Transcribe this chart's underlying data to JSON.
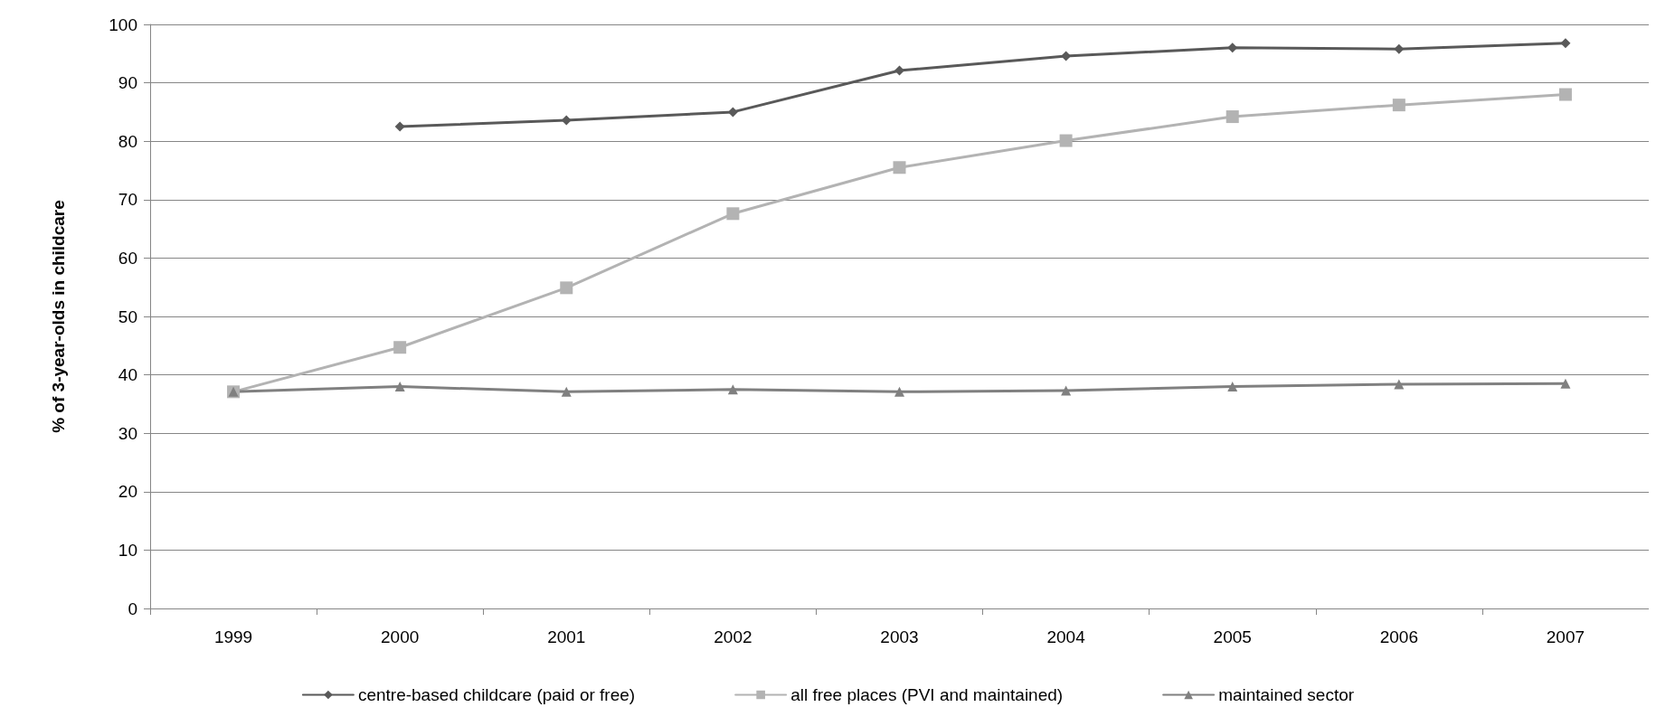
{
  "chart_data": {
    "type": "line",
    "ylabel": "% of 3-year-olds in childcare",
    "categories": [
      "1999",
      "2000",
      "2001",
      "2002",
      "2003",
      "2004",
      "2005",
      "2006",
      "2007"
    ],
    "series": [
      {
        "name": "centre-based childcare (paid or free)",
        "color": "#595959",
        "marker": "diamond",
        "values": [
          null,
          82.5,
          83.6,
          85.0,
          92.1,
          94.6,
          96.0,
          95.8,
          96.8
        ]
      },
      {
        "name": "all free places (PVI and maintained)",
        "color": "#b3b3b3",
        "marker": "square",
        "values": [
          37.1,
          44.7,
          54.9,
          67.6,
          75.5,
          80.1,
          84.2,
          86.2,
          88.0
        ]
      },
      {
        "name": "maintained sector",
        "color": "#808080",
        "marker": "triangle",
        "values": [
          37.1,
          38.0,
          37.1,
          37.5,
          37.1,
          37.3,
          38.0,
          38.4,
          38.5
        ]
      }
    ],
    "ylim": [
      0,
      100
    ],
    "yticks": [
      0,
      10,
      20,
      30,
      40,
      50,
      60,
      70,
      80,
      90,
      100
    ],
    "grid": "y",
    "legend": "bottom",
    "line_style": "solid"
  }
}
